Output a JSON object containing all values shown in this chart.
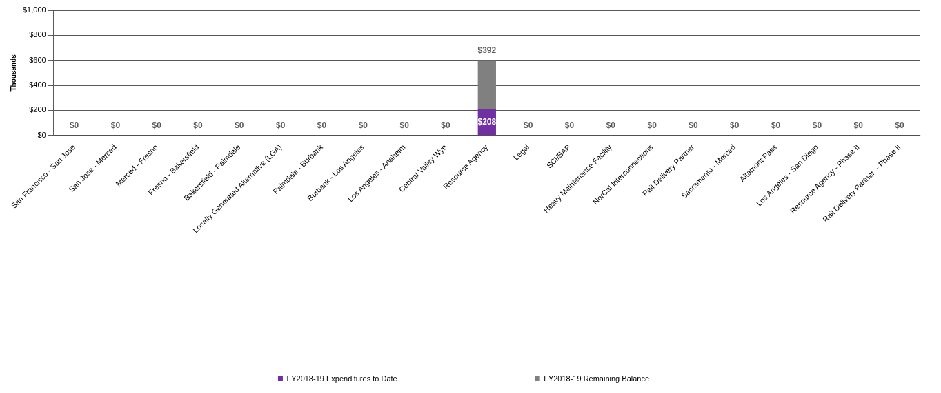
{
  "chart_data": {
    "type": "bar",
    "stacked": true,
    "ylabel": "Thousands",
    "categories": [
      "San Francisco - San Jose",
      "San Jose - Merced",
      "Merced - Fresno",
      "Fresno - Bakersfield",
      "Bakersfield - Palmdale",
      "Locally Generated Alternative (LGA)",
      "Palmdale - Burbank",
      "Burbank - Los Angeles",
      "Los Angeles - Anaheim",
      "Central Valley Wye",
      "Resource Agency",
      "Legal",
      "SCI/SAP",
      "Heavy Maintenance Facility",
      "NorCal Interconnections",
      "Rail Delivery Partner",
      "Sacramento - Merced",
      "Altamont Pass",
      "Los Angeles - San Diego",
      "Resource Agency - Phase II",
      "Rail Delivery Partner  - Phase II"
    ],
    "series": [
      {
        "name": "FY2018-19 Expenditures to Date",
        "color": "#7030a0",
        "values": [
          0,
          0,
          0,
          0,
          0,
          0,
          0,
          0,
          0,
          0,
          208,
          0,
          0,
          0,
          0,
          0,
          0,
          0,
          0,
          0,
          0
        ],
        "value_labels": [
          null,
          null,
          null,
          null,
          null,
          null,
          null,
          null,
          null,
          null,
          "$208",
          null,
          null,
          null,
          null,
          null,
          null,
          null,
          null,
          null,
          null
        ]
      },
      {
        "name": "FY2018-19 Remaining Balance",
        "color": "#808080",
        "values": [
          0,
          0,
          0,
          0,
          0,
          0,
          0,
          0,
          0,
          0,
          392,
          0,
          0,
          0,
          0,
          0,
          0,
          0,
          0,
          0,
          0
        ],
        "value_labels": [
          "$0",
          "$0",
          "$0",
          "$0",
          "$0",
          "$0",
          "$0",
          "$0",
          "$0",
          "$0",
          "$392",
          "$0",
          "$0",
          "$0",
          "$0",
          "$0",
          "$0",
          "$0",
          "$0",
          "$0",
          "$0"
        ]
      }
    ],
    "ylim": [
      0,
      1000
    ],
    "yticks": [
      {
        "value": 0,
        "label": "$0"
      },
      {
        "value": 200,
        "label": "$200"
      },
      {
        "value": 400,
        "label": "$400"
      },
      {
        "value": 600,
        "label": "$600"
      },
      {
        "value": 800,
        "label": "$800"
      },
      {
        "value": 1000,
        "label": "$1,000"
      }
    ],
    "grid": "y",
    "legend": "bottom"
  }
}
